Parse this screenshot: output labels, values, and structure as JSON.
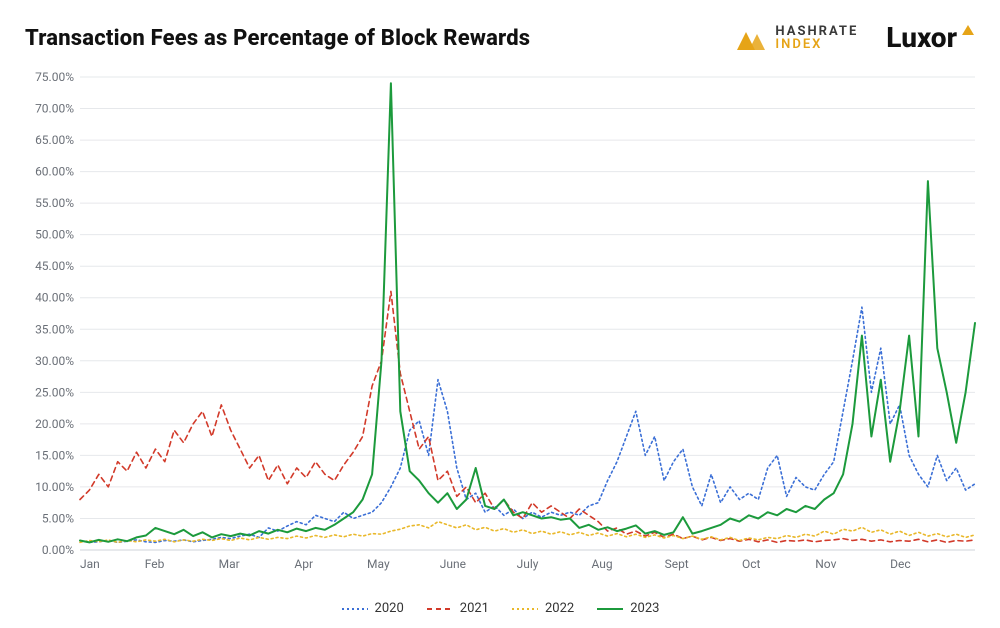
{
  "title": "Transaction Fees as Percentage of Block Rewards",
  "brands": {
    "hashrate": {
      "top": "HASHRATE",
      "bottom": "INDEX",
      "color": "#e6a417"
    },
    "luxor": {
      "text": "Luxor",
      "accent_color": "#e6a417"
    }
  },
  "chart": {
    "type": "line",
    "background_color": "#ffffff",
    "grid_color": "#e6e8eb",
    "axis_text_color": "#6a6f77",
    "tick_fontsize": 12,
    "ylim": [
      0,
      75
    ],
    "ytick_step": 5,
    "y_tick_labels": [
      "0.00%",
      "5.00%",
      "10.00%",
      "15.00%",
      "20.00%",
      "25.00%",
      "30.00%",
      "35.00%",
      "40.00%",
      "45.00%",
      "50.00%",
      "55.00%",
      "60.00%",
      "65.00%",
      "70.00%",
      "75.00%"
    ],
    "x_categories": [
      "Jan",
      "Feb",
      "Mar",
      "Apr",
      "May",
      "June",
      "July",
      "Aug",
      "Sept",
      "Oct",
      "Nov",
      "Dec"
    ],
    "x_points_per_series": 96,
    "legend": {
      "position": "bottom-center"
    },
    "series": [
      {
        "name": "2020",
        "color": "#3b6fd6",
        "style": "dotted",
        "linewidth": 1.6,
        "values": [
          1.5,
          1.2,
          1.3,
          1.5,
          1.2,
          1.4,
          1.6,
          1.3,
          1.2,
          1.5,
          1.4,
          1.6,
          1.3,
          1.5,
          1.7,
          2.0,
          1.8,
          2.2,
          2.5,
          2.0,
          3.5,
          3.0,
          3.8,
          4.5,
          4.0,
          5.5,
          5.0,
          4.5,
          6.0,
          5.0,
          5.5,
          6.0,
          7.5,
          10.0,
          13.0,
          19.0,
          20.5,
          15.0,
          27.0,
          22.0,
          13.0,
          8.0,
          9.0,
          6.0,
          7.0,
          5.5,
          6.5,
          5.0,
          6.0,
          5.2,
          6.0,
          5.5,
          6.0,
          5.5,
          7.0,
          7.5,
          11.0,
          14.0,
          18.0,
          22.0,
          15.0,
          18.0,
          11.0,
          14.0,
          16.0,
          10.0,
          7.0,
          12.0,
          7.5,
          10.0,
          8.0,
          9.0,
          8.0,
          13.0,
          15.0,
          8.5,
          11.5,
          10.0,
          9.5,
          12.0,
          14.0,
          22.0,
          30.0,
          38.5,
          25.0,
          32.0,
          20.0,
          23.0,
          15.0,
          12.0,
          10.0,
          15.0,
          11.0,
          13.0,
          9.5,
          10.5
        ]
      },
      {
        "name": "2021",
        "color": "#d23a2a",
        "style": "dashed",
        "linewidth": 1.6,
        "values": [
          8.0,
          9.5,
          12.0,
          10.0,
          14.0,
          12.5,
          15.5,
          13.0,
          16.0,
          14.0,
          19.0,
          17.0,
          20.0,
          22.0,
          18.0,
          23.0,
          19.0,
          16.0,
          13.0,
          15.0,
          11.0,
          13.5,
          10.5,
          13.0,
          11.5,
          14.0,
          12.0,
          11.0,
          13.5,
          15.5,
          18.0,
          26.0,
          30.0,
          41.0,
          28.0,
          22.0,
          16.0,
          18.0,
          11.0,
          12.5,
          8.5,
          10.0,
          7.5,
          9.0,
          6.5,
          8.0,
          6.0,
          5.0,
          7.5,
          6.0,
          7.0,
          6.0,
          5.0,
          6.5,
          5.5,
          4.5,
          3.0,
          3.5,
          2.5,
          3.0,
          2.2,
          2.8,
          2.0,
          2.5,
          1.8,
          2.2,
          1.6,
          2.0,
          1.5,
          1.8,
          1.4,
          1.7,
          1.3,
          1.6,
          1.2,
          1.5,
          1.4,
          1.6,
          1.3,
          1.5,
          1.6,
          1.8,
          1.5,
          1.7,
          1.4,
          1.6,
          1.3,
          1.5,
          1.4,
          1.7,
          1.3,
          1.6,
          1.2,
          1.5,
          1.4,
          1.6
        ]
      },
      {
        "name": "2022",
        "color": "#e9b82a",
        "style": "dotted",
        "linewidth": 1.6,
        "values": [
          1.2,
          1.5,
          1.3,
          1.6,
          1.2,
          1.5,
          1.3,
          1.6,
          1.4,
          1.7,
          1.3,
          1.6,
          1.4,
          1.7,
          1.5,
          1.8,
          1.5,
          1.9,
          1.6,
          2.0,
          1.7,
          2.0,
          1.8,
          2.2,
          1.9,
          2.3,
          2.0,
          2.4,
          2.1,
          2.5,
          2.2,
          2.6,
          2.5,
          3.0,
          3.3,
          3.8,
          4.0,
          3.5,
          4.5,
          4.0,
          3.5,
          4.0,
          3.2,
          3.6,
          3.0,
          3.4,
          2.8,
          3.2,
          2.6,
          3.0,
          2.5,
          2.9,
          2.4,
          2.8,
          2.3,
          2.7,
          2.2,
          2.6,
          2.1,
          2.5,
          2.0,
          2.4,
          1.9,
          2.3,
          1.8,
          2.2,
          1.7,
          2.1,
          1.6,
          2.0,
          1.5,
          1.9,
          1.6,
          2.0,
          1.8,
          2.3,
          2.0,
          2.5,
          2.2,
          3.0,
          2.5,
          3.3,
          3.0,
          3.6,
          2.8,
          3.2,
          2.5,
          3.0,
          2.3,
          2.8,
          2.2,
          2.6,
          2.1,
          2.5,
          2.0,
          2.4
        ]
      },
      {
        "name": "2023",
        "color": "#1c9a3c",
        "style": "solid",
        "linewidth": 2.0,
        "values": [
          1.5,
          1.2,
          1.6,
          1.3,
          1.7,
          1.4,
          2.0,
          2.3,
          3.5,
          3.0,
          2.5,
          3.2,
          2.2,
          2.8,
          2.0,
          2.5,
          2.2,
          2.6,
          2.3,
          3.0,
          2.6,
          3.2,
          2.8,
          3.4,
          3.0,
          3.5,
          3.2,
          4.0,
          5.0,
          6.0,
          8.0,
          12.0,
          30.0,
          74.0,
          22.0,
          12.5,
          11.0,
          9.0,
          7.5,
          9.0,
          6.5,
          8.0,
          13.0,
          7.0,
          6.5,
          8.0,
          5.5,
          6.0,
          5.5,
          5.0,
          5.2,
          4.8,
          5.0,
          3.5,
          4.0,
          3.2,
          3.6,
          3.0,
          3.4,
          3.9,
          2.6,
          3.0,
          2.4,
          2.8,
          5.2,
          2.6,
          3.0,
          3.5,
          4.0,
          5.0,
          4.5,
          5.5,
          5.0,
          6.0,
          5.5,
          6.5,
          6.0,
          7.0,
          6.5,
          8.0,
          9.0,
          12.0,
          20.0,
          34.0,
          18.0,
          27.0,
          14.0,
          22.0,
          34.0,
          18.0,
          58.5,
          32.0,
          25.0,
          17.0,
          25.0,
          36.0
        ]
      }
    ]
  }
}
